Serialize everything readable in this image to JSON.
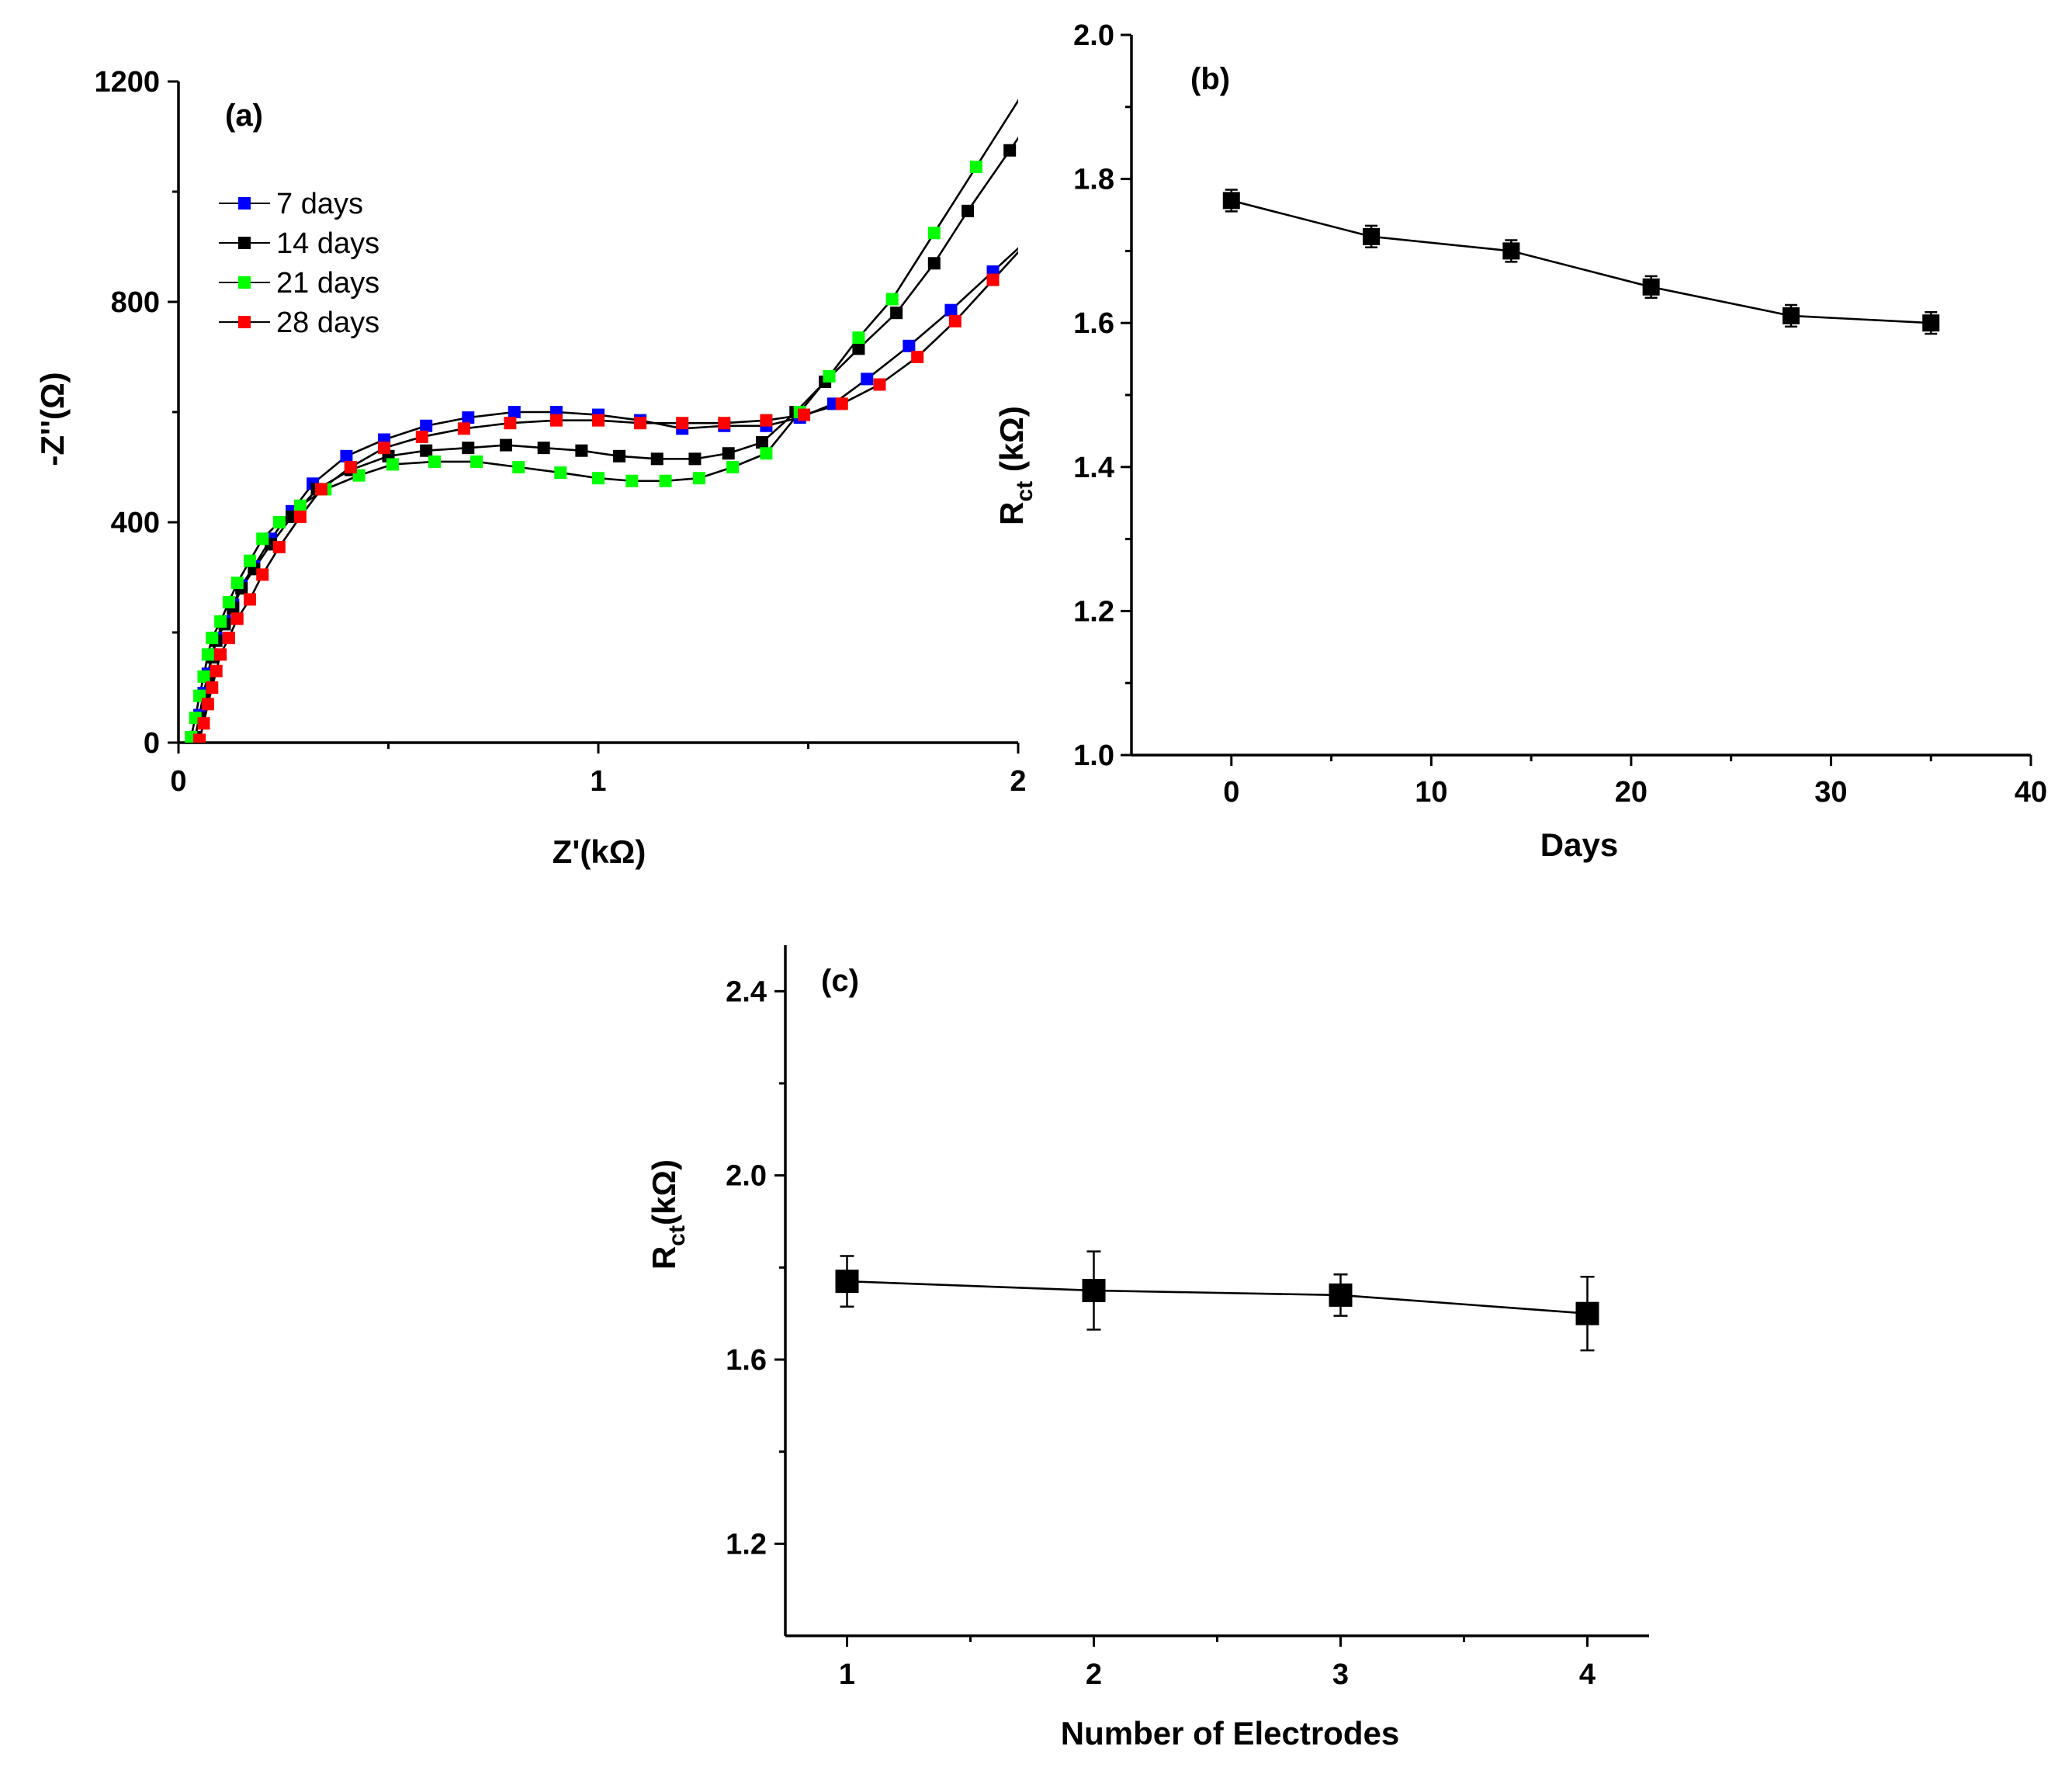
{
  "chart_data": [
    {
      "panel": "(a)",
      "type": "scatter",
      "xlabel": "Z'(kΩ)",
      "ylabel": "-Z''(Ω)",
      "xlim": [
        0,
        2
      ],
      "ylim": [
        0,
        1200
      ],
      "xticks": [
        0,
        1,
        2
      ],
      "yticks": [
        0,
        400,
        800,
        1200
      ],
      "legend_placement": "top-left",
      "series": [
        {
          "name": "7 days",
          "color": "#0000ff",
          "x": [
            0.04,
            0.05,
            0.06,
            0.07,
            0.08,
            0.09,
            0.11,
            0.13,
            0.15,
            0.18,
            0.22,
            0.27,
            0.32,
            0.4,
            0.49,
            0.59,
            0.69,
            0.8,
            0.9,
            1.0,
            1.1,
            1.2,
            1.3,
            1.4,
            1.48,
            1.56,
            1.64,
            1.74,
            1.84,
            1.94
          ],
          "y": [
            10,
            50,
            90,
            125,
            160,
            190,
            220,
            250,
            285,
            320,
            370,
            420,
            470,
            520,
            550,
            575,
            590,
            600,
            600,
            595,
            585,
            570,
            575,
            575,
            590,
            615,
            660,
            720,
            785,
            855
          ]
        },
        {
          "name": "14 days",
          "color": "#000000",
          "x": [
            0.04,
            0.05,
            0.06,
            0.07,
            0.08,
            0.09,
            0.11,
            0.13,
            0.15,
            0.18,
            0.22,
            0.27,
            0.33,
            0.41,
            0.5,
            0.59,
            0.69,
            0.78,
            0.87,
            0.96,
            1.05,
            1.14,
            1.23,
            1.31,
            1.39,
            1.47,
            1.54,
            1.62,
            1.71,
            1.8,
            1.88,
            1.98
          ],
          "y": [
            10,
            45,
            85,
            120,
            155,
            185,
            215,
            245,
            280,
            315,
            360,
            410,
            460,
            495,
            520,
            530,
            535,
            540,
            535,
            530,
            520,
            515,
            515,
            525,
            545,
            600,
            655,
            715,
            780,
            870,
            965,
            1075
          ]
        },
        {
          "name": "21 days",
          "color": "#00ff00",
          "x": [
            0.03,
            0.04,
            0.05,
            0.06,
            0.07,
            0.08,
            0.1,
            0.12,
            0.14,
            0.17,
            0.2,
            0.24,
            0.29,
            0.35,
            0.43,
            0.51,
            0.61,
            0.71,
            0.81,
            0.91,
            1.0,
            1.08,
            1.16,
            1.24,
            1.32,
            1.4,
            1.48,
            1.55,
            1.62,
            1.7,
            1.8,
            1.9
          ],
          "y": [
            10,
            45,
            85,
            120,
            160,
            190,
            220,
            255,
            290,
            330,
            370,
            400,
            430,
            460,
            485,
            505,
            510,
            510,
            500,
            490,
            480,
            475,
            475,
            480,
            500,
            525,
            600,
            665,
            735,
            805,
            925,
            1045
          ]
        },
        {
          "name": "28 days",
          "color": "#ff0000",
          "x": [
            0.05,
            0.06,
            0.07,
            0.08,
            0.09,
            0.1,
            0.12,
            0.14,
            0.17,
            0.2,
            0.24,
            0.29,
            0.34,
            0.41,
            0.49,
            0.58,
            0.68,
            0.79,
            0.9,
            1.0,
            1.1,
            1.2,
            1.3,
            1.4,
            1.49,
            1.58,
            1.67,
            1.76,
            1.85,
            1.94
          ],
          "y": [
            5,
            35,
            70,
            100,
            130,
            160,
            190,
            225,
            260,
            305,
            355,
            410,
            460,
            500,
            535,
            555,
            570,
            580,
            585,
            585,
            580,
            580,
            580,
            585,
            595,
            615,
            650,
            700,
            765,
            840
          ]
        }
      ]
    },
    {
      "panel": "(b)",
      "type": "line",
      "xlabel": "Days",
      "ylabel": "R",
      "ylabel_sub": "ct",
      "ylabel_unit": " (kΩ)",
      "xlim": [
        -5,
        40
      ],
      "ylim": [
        1.0,
        2.0
      ],
      "xticks": [
        0,
        10,
        20,
        30,
        40
      ],
      "yticks": [
        1.0,
        1.2,
        1.4,
        1.6,
        1.8,
        2.0
      ],
      "x": [
        0,
        7,
        14,
        21,
        28,
        35
      ],
      "values": [
        1.77,
        1.72,
        1.7,
        1.65,
        1.61,
        1.6
      ],
      "errors": [
        0.015,
        0.015,
        0.015,
        0.015,
        0.015,
        0.015
      ]
    },
    {
      "panel": "(c)",
      "type": "line",
      "xlabel": "Number of Electrodes",
      "ylabel": "R",
      "ylabel_sub": "ct",
      "ylabel_unit": "(kΩ)",
      "xlim": [
        0.75,
        4.25
      ],
      "ylim": [
        1.0,
        2.5
      ],
      "xticks": [
        1,
        2,
        3,
        4
      ],
      "yticks": [
        1.2,
        1.6,
        2.0,
        2.4
      ],
      "x": [
        1,
        2,
        3,
        4
      ],
      "values": [
        1.77,
        1.75,
        1.74,
        1.7
      ],
      "errors": [
        0.055,
        0.085,
        0.045,
        0.08
      ]
    }
  ]
}
